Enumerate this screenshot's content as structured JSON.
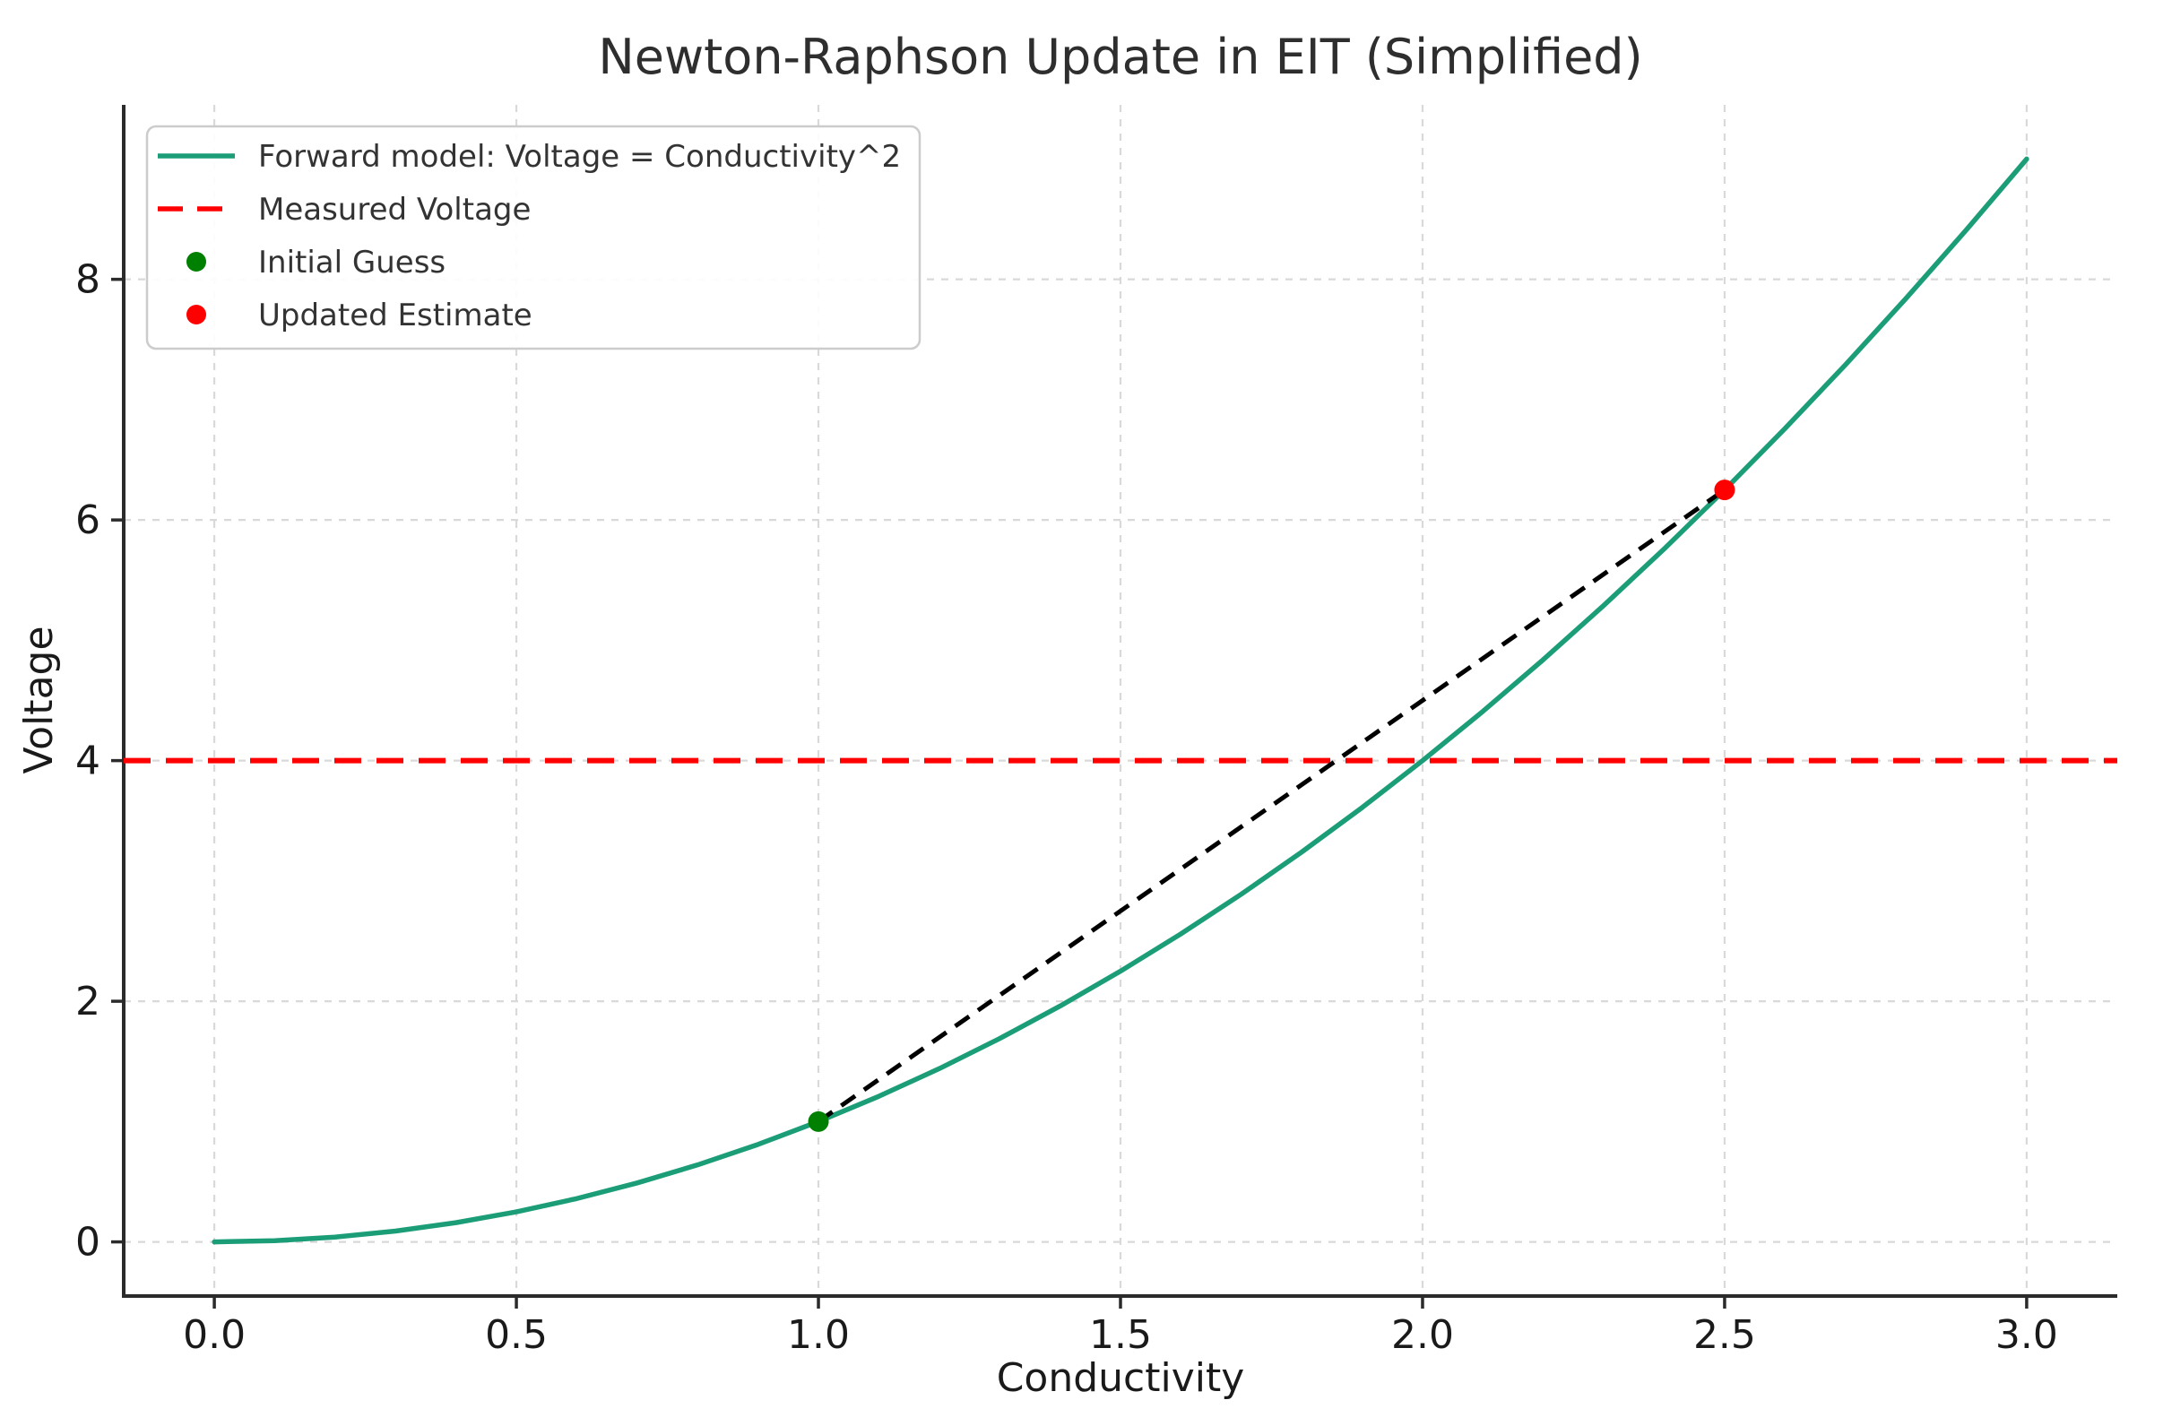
{
  "chart_data": {
    "type": "line",
    "title": "Newton-Raphson Update in EIT (Simplified)",
    "xlabel": "Conductivity",
    "ylabel": "Voltage",
    "xlim": [
      -0.15,
      3.15
    ],
    "ylim": [
      -0.45,
      9.45
    ],
    "xticks": [
      0.0,
      0.5,
      1.0,
      1.5,
      2.0,
      2.5,
      3.0
    ],
    "xtick_labels": [
      "0.0",
      "0.5",
      "1.0",
      "1.5",
      "2.0",
      "2.5",
      "3.0"
    ],
    "yticks": [
      0,
      2,
      4,
      6,
      8
    ],
    "ytick_labels": [
      "0",
      "2",
      "4",
      "6",
      "8"
    ],
    "grid": true,
    "legend_position": "upper-left",
    "colors": {
      "forward_model": "#1b9e77",
      "measured_voltage": "#ff0000",
      "initial_guess": "#008000",
      "updated_estimate": "#ff0000",
      "newton_step": "#000000",
      "gridline": "#d9d9d9",
      "spine": "#2b2b2b",
      "tick_label": "#1a1a1a",
      "title": "#2e2e2e",
      "legend_border": "#cccccc"
    },
    "series": [
      {
        "name": "Forward model: Voltage = Conductivity^2",
        "kind": "line",
        "style": "solid",
        "color": "#1b9e77",
        "x": [
          0.0,
          0.1,
          0.2,
          0.3,
          0.4,
          0.5,
          0.6,
          0.7,
          0.8,
          0.9,
          1.0,
          1.1,
          1.2,
          1.3,
          1.4,
          1.5,
          1.6,
          1.7,
          1.8,
          1.9,
          2.0,
          2.1,
          2.2,
          2.3,
          2.4,
          2.5,
          2.6,
          2.7,
          2.8,
          2.9,
          3.0
        ],
        "y": [
          0.0,
          0.01,
          0.04,
          0.09,
          0.16,
          0.25,
          0.36,
          0.49,
          0.64,
          0.81,
          1.0,
          1.21,
          1.44,
          1.69,
          1.96,
          2.25,
          2.56,
          2.89,
          3.24,
          3.61,
          4.0,
          4.41,
          4.84,
          5.29,
          5.76,
          6.25,
          6.76,
          7.29,
          7.84,
          8.41,
          9.0
        ]
      },
      {
        "name": "Measured Voltage",
        "kind": "hline",
        "style": "dashed",
        "color": "#ff0000",
        "y": 4.0
      },
      {
        "name": "Newton step",
        "kind": "segment",
        "style": "dashed",
        "color": "#000000",
        "x": [
          1.0,
          2.5
        ],
        "y": [
          1.0,
          6.25
        ]
      }
    ],
    "points": [
      {
        "name": "Initial Guess",
        "x": 1.0,
        "y": 1.0,
        "color": "#008000"
      },
      {
        "name": "Updated Estimate",
        "x": 2.5,
        "y": 6.25,
        "color": "#ff0000"
      }
    ],
    "legend": [
      {
        "label": "Forward model: Voltage = Conductivity^2",
        "swatch": "line",
        "style": "solid",
        "color": "#1b9e77"
      },
      {
        "label": "Measured Voltage",
        "swatch": "line",
        "style": "dashed",
        "color": "#ff0000"
      },
      {
        "label": "Initial Guess",
        "swatch": "dot",
        "style": "solid",
        "color": "#008000"
      },
      {
        "label": "Updated Estimate",
        "swatch": "dot",
        "style": "solid",
        "color": "#ff0000"
      }
    ]
  }
}
